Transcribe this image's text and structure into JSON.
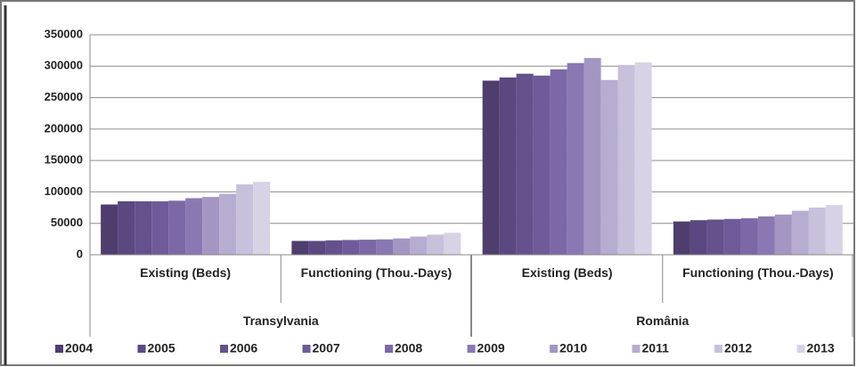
{
  "chart_data": {
    "type": "bar",
    "groups": [
      {
        "name": "Transylvania",
        "categories": [
          "Existing (Beds)",
          "Functioning (Thou.-Days)"
        ]
      },
      {
        "name": "România",
        "categories": [
          "Existing (Beds)",
          "Functioning (Thou.-Days)"
        ]
      }
    ],
    "series": [
      {
        "name": "2004",
        "color": "#4f3d6e",
        "values": [
          80000,
          22000,
          277000,
          53000
        ]
      },
      {
        "name": "2005",
        "color": "#5a4880",
        "values": [
          85000,
          22000,
          282000,
          55000
        ]
      },
      {
        "name": "2006",
        "color": "#65528c",
        "values": [
          85000,
          23000,
          288000,
          56000
        ]
      },
      {
        "name": "2007",
        "color": "#6f5b99",
        "values": [
          85000,
          23500,
          285000,
          57000
        ]
      },
      {
        "name": "2008",
        "color": "#7c68a6",
        "values": [
          86000,
          24000,
          295000,
          58000
        ]
      },
      {
        "name": "2009",
        "color": "#8a78b2",
        "values": [
          90000,
          24500,
          305000,
          61000
        ]
      },
      {
        "name": "2010",
        "color": "#a496c2",
        "values": [
          92000,
          26000,
          313000,
          64000
        ]
      },
      {
        "name": "2011",
        "color": "#b8acd0",
        "values": [
          97000,
          29000,
          278000,
          70000
        ]
      },
      {
        "name": "2012",
        "color": "#c9c0dc",
        "values": [
          112000,
          32000,
          302000,
          75000
        ]
      },
      {
        "name": "2013",
        "color": "#d8d2e6",
        "values": [
          116000,
          35000,
          306000,
          79000
        ]
      }
    ],
    "ylim": [
      0,
      350000
    ],
    "yticks": [
      0,
      50000,
      100000,
      150000,
      200000,
      250000,
      300000,
      350000
    ],
    "grid": true
  }
}
